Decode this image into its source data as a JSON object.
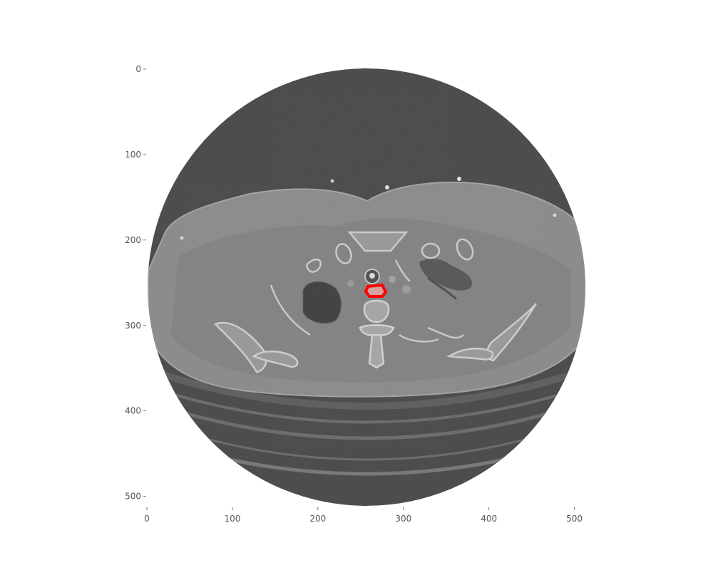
{
  "figure": {
    "image_type": "axial CT slice with segmentation overlay",
    "annotation_color": "#ff0000",
    "image_extent": {
      "x": [
        0,
        512
      ],
      "y": [
        0,
        512
      ]
    },
    "colors": {
      "background": "#474747",
      "soft_tissue": "#8a8a8a",
      "fat": "#7f7f7f",
      "bone": "#c8c8c8",
      "lung": "#3e3e3e",
      "table": "#5e5e5e"
    },
    "x_axis": {
      "ticks": [
        {
          "value": 0,
          "label": "0"
        },
        {
          "value": 100,
          "label": "100"
        },
        {
          "value": 200,
          "label": "200"
        },
        {
          "value": 300,
          "label": "300"
        },
        {
          "value": 400,
          "label": "400"
        },
        {
          "value": 500,
          "label": "500"
        }
      ]
    },
    "y_axis": {
      "ticks": [
        {
          "value": 0,
          "label": "0"
        },
        {
          "value": 100,
          "label": "100"
        },
        {
          "value": 200,
          "label": "200"
        },
        {
          "value": 300,
          "label": "300"
        },
        {
          "value": 400,
          "label": "400"
        },
        {
          "value": 500,
          "label": "500"
        }
      ]
    }
  }
}
